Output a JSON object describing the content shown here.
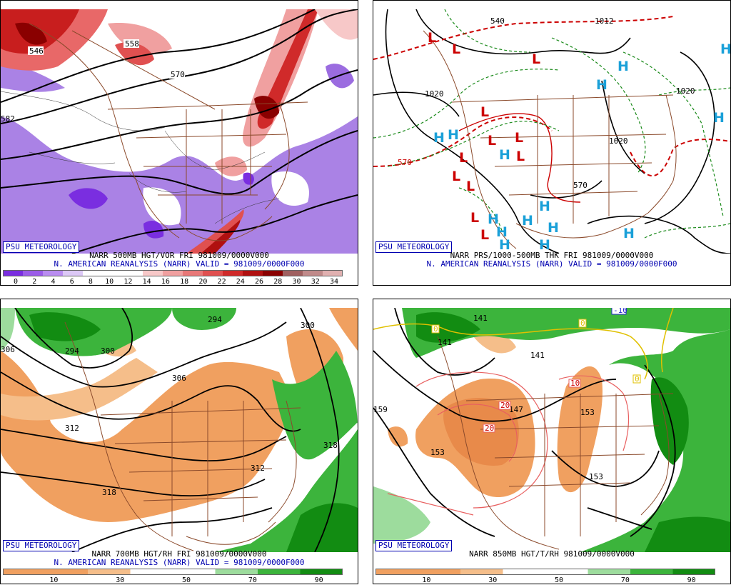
{
  "panels": [
    {
      "id": "tl",
      "badge": "PSU METEOROLOGY",
      "title_line1": "NARR 500MB HGT/VOR FRI 981009/0000V000",
      "title_line2": "N. AMERICAN REANALYSIS (NARR) VALID = 981009/0000F000",
      "colorbar_colors": [
        "#7a2ee0",
        "#9b5ce8",
        "#b98cf0",
        "#dcc8f6",
        "#ffffff",
        "#ffffff",
        "#ffffff",
        "#f7c8c8",
        "#f0a0a0",
        "#e87878",
        "#e05050",
        "#d02a2a",
        "#b01010",
        "#8a0000",
        "#a06060",
        "#c08a8a",
        "#e0b0b0"
      ],
      "colorbar_ticks": [
        "0",
        "2",
        "4",
        "6",
        "8",
        "10",
        "12",
        "14",
        "16",
        "18",
        "20",
        "22",
        "24",
        "26",
        "28",
        "30",
        "32",
        "34"
      ],
      "contour_labels": [
        "546",
        "558",
        "570",
        "582"
      ]
    },
    {
      "id": "tr",
      "badge": "PSU METEOROLOGY",
      "title_line1": "NARR PRS/1000-500MB THK FRI 981009/0000V000",
      "title_line2": "N. AMERICAN REANALYSIS (NARR) VALID = 981009/0000F000",
      "contour_labels": [
        "1020",
        "1020",
        "1020",
        "570",
        "570",
        "540",
        "1012"
      ],
      "low_marker": "L",
      "high_marker": "H"
    },
    {
      "id": "bl",
      "badge": "PSU METEOROLOGY",
      "title_line1": "NARR 700MB HGT/RH FRI 981009/0000V000",
      "title_line2": "N. AMERICAN REANALYSIS (NARR) VALID = 981009/0000F000",
      "colorbar_colors": [
        "#f0a060",
        "#f0a060",
        "#f5be8a",
        "#ffffff",
        "#ffffff",
        "#9ddc9d",
        "#3cb43c",
        "#128c12"
      ],
      "colorbar_ticks": [
        "10",
        "30",
        "50",
        "70",
        "90"
      ],
      "contour_labels": [
        "294",
        "294",
        "300",
        "300",
        "306",
        "306",
        "312",
        "312",
        "318",
        "318"
      ]
    },
    {
      "id": "br",
      "badge": "PSU METEOROLOGY",
      "title_line1": "NARR 850MB HGT/T/RH 981009/0000V000",
      "title_line2": "",
      "colorbar_colors": [
        "#f0a060",
        "#f0a060",
        "#f5be8a",
        "#ffffff",
        "#ffffff",
        "#9ddc9d",
        "#3cb43c",
        "#128c12"
      ],
      "colorbar_ticks": [
        "10",
        "30",
        "50",
        "70",
        "90"
      ],
      "contour_labels": [
        "141",
        "141",
        "141",
        "147",
        "153",
        "153",
        "153",
        "159"
      ],
      "temp_labels": [
        "0",
        "0",
        "0",
        "10",
        "20",
        "20",
        "-10"
      ]
    }
  ]
}
